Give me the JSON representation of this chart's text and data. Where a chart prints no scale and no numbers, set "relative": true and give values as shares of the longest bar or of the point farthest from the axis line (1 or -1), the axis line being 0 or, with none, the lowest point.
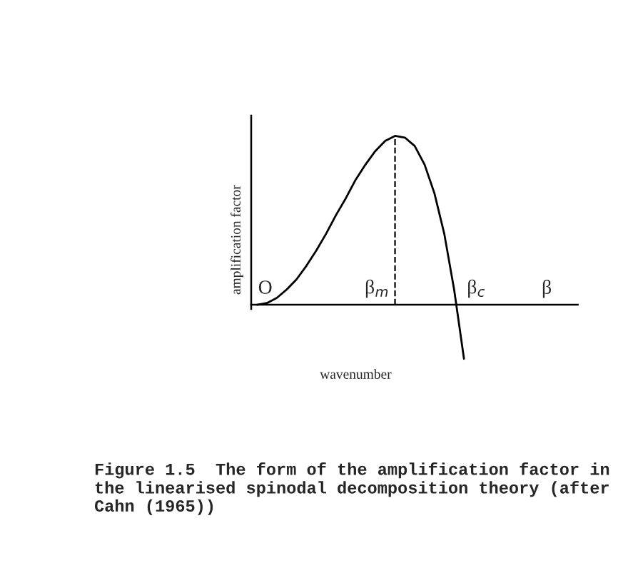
{
  "chart_data": {
    "type": "line",
    "relative": true,
    "xlabel": "wavenumber",
    "ylabel": "amplification factor",
    "categories": [
      null,
      null,
      null,
      null,
      null,
      null,
      null,
      null,
      null,
      null,
      null,
      null,
      null,
      null,
      null,
      null,
      null,
      null,
      null,
      null,
      null,
      null
    ],
    "series": [
      {
        "color": "#000000",
        "values": [
          0,
          0.01,
          0.04,
          0.09,
          0.15,
          0.23,
          0.32,
          0.42,
          0.53,
          0.63,
          0.74,
          0.83,
          0.91,
          0.97,
          1.0,
          0.99,
          0.94,
          0.83,
          0.66,
          0.42,
          0.09,
          -0.32
        ]
      }
    ],
    "annotations": [
      "O",
      "β$_{m}$",
      "β$_{c}$",
      "β",
      "Figure 1.5  The form of the amplification factor in the linearised spinodal decomposition theory (after Cahn (1965))"
    ],
    "marker": "none",
    "line_style": "solid"
  }
}
